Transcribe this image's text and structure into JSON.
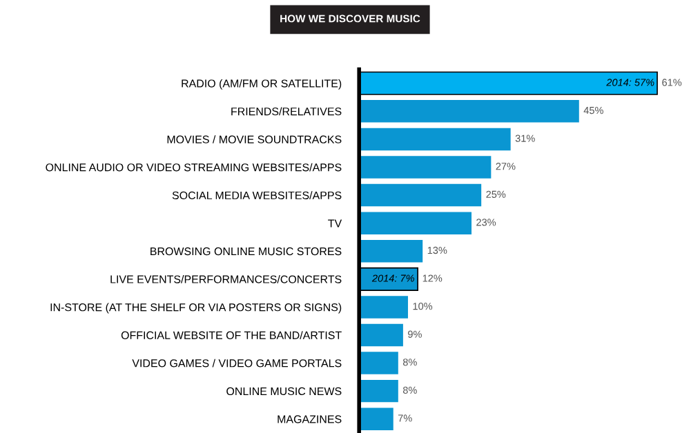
{
  "chart_data": {
    "type": "bar",
    "orientation": "horizontal",
    "title": "HOW WE DISCOVER MUSIC",
    "categories": [
      "RADIO (AM/FM OR SATELLITE)",
      "FRIENDS/RELATIVES",
      "MOVIES / MOVIE SOUNDTRACKS",
      "ONLINE AUDIO OR VIDEO STREAMING WEBSITES/APPS",
      "SOCIAL MEDIA WEBSITES/APPS",
      "TV",
      "BROWSING ONLINE MUSIC STORES",
      "LIVE EVENTS/PERFORMANCES/CONCERTS",
      "IN-STORE (AT THE SHELF OR VIA POSTERS OR SIGNS)",
      "OFFICIAL WEBSITE OF THE BAND/ARTIST",
      "VIDEO GAMES / VIDEO GAME PORTALS",
      "ONLINE MUSIC NEWS",
      "MAGAZINES"
    ],
    "values": [
      61,
      45,
      31,
      27,
      25,
      23,
      13,
      12,
      10,
      9,
      8,
      8,
      7
    ],
    "value_labels": [
      "61%",
      "45%",
      "31%",
      "27%",
      "25%",
      "23%",
      "13%",
      "12%",
      "10%",
      "9%",
      "8%",
      "8%",
      "7%"
    ],
    "colors": [
      "#00b0f0",
      "#0a96d2",
      "#0a96d2",
      "#0a96d2",
      "#0a96d2",
      "#0a96d2",
      "#0a96d2",
      "#0a96d2",
      "#0a96d2",
      "#0a96d2",
      "#0a96d2",
      "#0a96d2",
      "#0a96d2"
    ],
    "annotations": [
      {
        "text": "2014: 57%",
        "x": 57,
        "y": "RADIO (AM/FM OR SATELLITE)"
      },
      {
        "text": "2014: 7%",
        "x": 7,
        "y": "LIVE EVENTS/PERFORMANCES/CONCERTS"
      }
    ],
    "grid": false,
    "legend": false,
    "tick_labels": "y"
  }
}
